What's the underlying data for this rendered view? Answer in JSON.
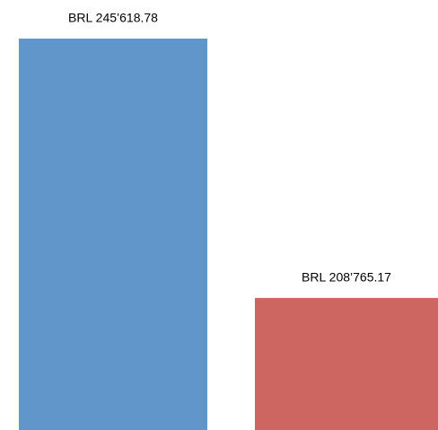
{
  "chart_data": {
    "type": "bar",
    "categories": [
      null,
      null
    ],
    "values": [
      245618.78,
      208765.17
    ],
    "value_labels": [
      "BRL 245’618.78",
      "BRL 208’765.17"
    ],
    "colors": [
      "#6096c9",
      "#cd6560"
    ],
    "ylim": [
      190000,
      246000
    ]
  }
}
